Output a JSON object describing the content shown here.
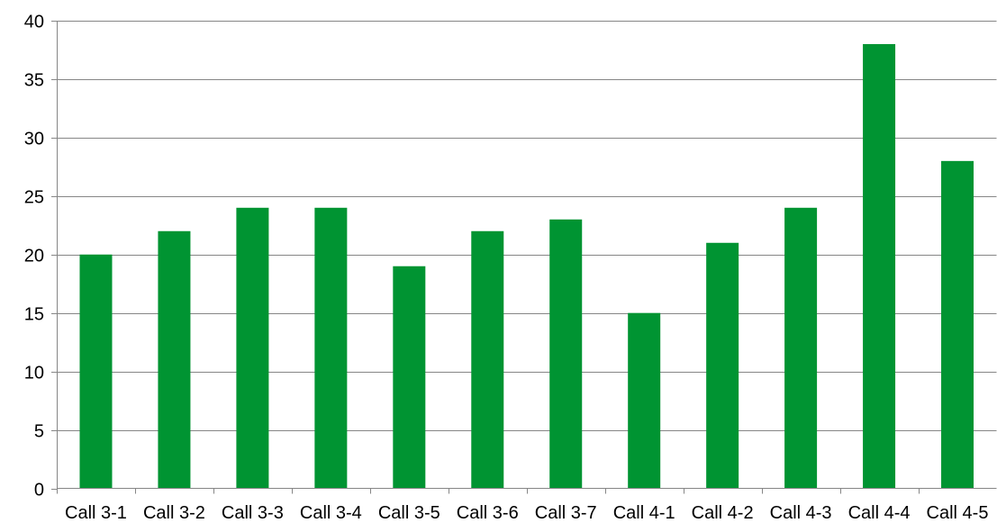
{
  "chart_data": {
    "type": "bar",
    "categories": [
      "Call 3-1",
      "Call 3-2",
      "Call 3-3",
      "Call 3-4",
      "Call 3-5",
      "Call 3-6",
      "Call 3-7",
      "Call 4-1",
      "Call 4-2",
      "Call 4-3",
      "Call 4-4",
      "Call 4-5"
    ],
    "values": [
      20,
      22,
      24,
      24,
      19,
      22,
      23,
      15,
      21,
      24,
      38,
      28
    ],
    "title": "",
    "xlabel": "",
    "ylabel": "",
    "ylim": [
      0,
      40
    ],
    "yticks": [
      0,
      5,
      10,
      15,
      20,
      25,
      30,
      35,
      40
    ],
    "grid": true,
    "legend": "none",
    "bar_color": "#009432"
  }
}
